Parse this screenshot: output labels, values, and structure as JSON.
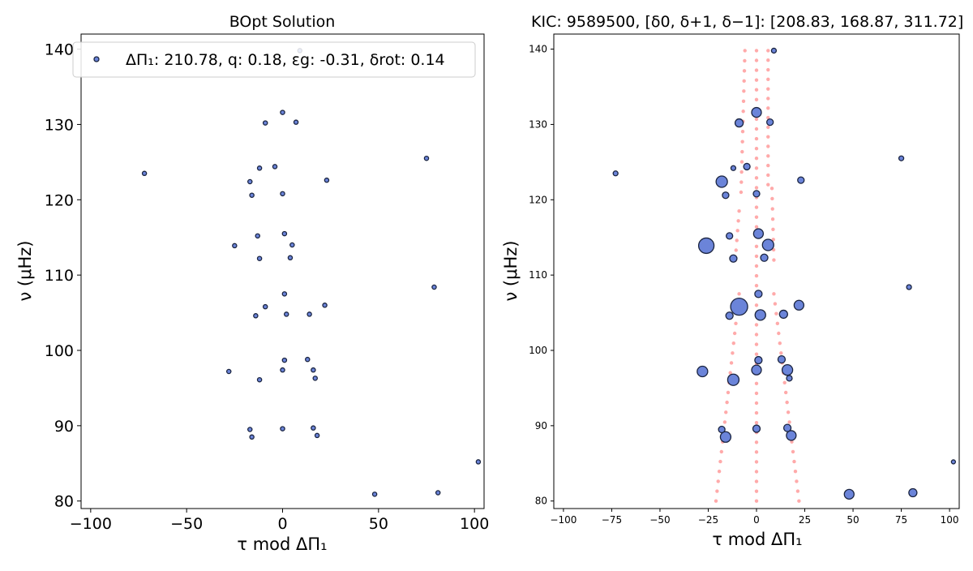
{
  "chart_data": [
    {
      "type": "scatter",
      "title": "BOpt Solution",
      "xlabel": "τ mod ΔΠ₁",
      "ylabel": "ν (μHz)",
      "xlim": [
        -105,
        105
      ],
      "ylim": [
        79,
        142
      ],
      "xticks": [
        "−100",
        "−50",
        "0",
        "50",
        "100"
      ],
      "yticks": [
        "80",
        "90",
        "100",
        "110",
        "120",
        "130",
        "140"
      ],
      "grid": false,
      "legend": {
        "position": "top",
        "label": "ΔΠ₁: 210.78, q: 0.18, εg: -0.31, δrot: 0.14"
      },
      "marker_color": "#6b84d9",
      "series": [
        {
          "points": [
            {
              "x": -72,
              "y": 123.5
            },
            {
              "x": -17,
              "y": 122.4
            },
            {
              "x": -16,
              "y": 120.6
            },
            {
              "x": -12,
              "y": 124.2
            },
            {
              "x": -4,
              "y": 124.4
            },
            {
              "x": 0,
              "y": 120.8
            },
            {
              "x": 23,
              "y": 122.6
            },
            {
              "x": 75,
              "y": 125.5
            },
            {
              "x": -9,
              "y": 130.2
            },
            {
              "x": 0,
              "y": 131.6
            },
            {
              "x": 7,
              "y": 130.3
            },
            {
              "x": 9,
              "y": 139.8
            },
            {
              "x": -25,
              "y": 113.9
            },
            {
              "x": -13,
              "y": 115.2
            },
            {
              "x": -12,
              "y": 112.2
            },
            {
              "x": 1,
              "y": 115.5
            },
            {
              "x": 5,
              "y": 114.0
            },
            {
              "x": 4,
              "y": 112.3
            },
            {
              "x": 79,
              "y": 108.4
            },
            {
              "x": -9,
              "y": 105.8
            },
            {
              "x": 1,
              "y": 107.5
            },
            {
              "x": -14,
              "y": 104.6
            },
            {
              "x": 2,
              "y": 104.8
            },
            {
              "x": 14,
              "y": 104.8
            },
            {
              "x": 22,
              "y": 106.0
            },
            {
              "x": -28,
              "y": 97.2
            },
            {
              "x": -12,
              "y": 96.1
            },
            {
              "x": 0,
              "y": 97.4
            },
            {
              "x": 1,
              "y": 98.7
            },
            {
              "x": 13,
              "y": 98.8
            },
            {
              "x": 16,
              "y": 97.4
            },
            {
              "x": 17,
              "y": 96.3
            },
            {
              "x": -17,
              "y": 89.5
            },
            {
              "x": -16,
              "y": 88.5
            },
            {
              "x": 0,
              "y": 89.6
            },
            {
              "x": 16,
              "y": 89.7
            },
            {
              "x": 18,
              "y": 88.7
            },
            {
              "x": 102,
              "y": 85.2
            },
            {
              "x": 48,
              "y": 80.9
            },
            {
              "x": 81,
              "y": 81.1
            }
          ]
        }
      ]
    },
    {
      "type": "scatter",
      "title": "KIC: 9589500, [δ0, δ+1, δ−1]: [208.83, 168.87, 311.72]",
      "xlabel": "τ mod ΔΠ₁",
      "ylabel": "ν (μHz)",
      "xlim": [
        -105,
        105
      ],
      "ylim": [
        79,
        142
      ],
      "xticks": [
        "−100",
        "−75",
        "−50",
        "−25",
        "0",
        "25",
        "50",
        "75",
        "100"
      ],
      "yticks": [
        "80",
        "90",
        "100",
        "110",
        "120",
        "130",
        "140"
      ],
      "grid": false,
      "observed_color": "#6b84d9",
      "model_color": "#ffaaaa",
      "series": [
        {
          "kind": "observed",
          "points": [
            {
              "x": -73,
              "y": 123.5,
              "s": 3
            },
            {
              "x": -18,
              "y": 122.4,
              "s": 7
            },
            {
              "x": -16,
              "y": 120.6,
              "s": 4
            },
            {
              "x": -12,
              "y": 124.2,
              "s": 3
            },
            {
              "x": -5,
              "y": 124.4,
              "s": 4
            },
            {
              "x": 0,
              "y": 120.8,
              "s": 4
            },
            {
              "x": 23,
              "y": 122.6,
              "s": 4
            },
            {
              "x": 75,
              "y": 125.5,
              "s": 3
            },
            {
              "x": -9,
              "y": 130.2,
              "s": 5
            },
            {
              "x": 0,
              "y": 131.6,
              "s": 6
            },
            {
              "x": 7,
              "y": 130.3,
              "s": 4
            },
            {
              "x": 9,
              "y": 139.8,
              "s": 3
            },
            {
              "x": -26,
              "y": 113.9,
              "s": 9.5
            },
            {
              "x": -14,
              "y": 115.2,
              "s": 4
            },
            {
              "x": -12,
              "y": 112.2,
              "s": 4.5
            },
            {
              "x": 1,
              "y": 115.5,
              "s": 6
            },
            {
              "x": 6,
              "y": 114.0,
              "s": 7
            },
            {
              "x": 4,
              "y": 112.3,
              "s": 4.5
            },
            {
              "x": 79,
              "y": 108.4,
              "s": 3
            },
            {
              "x": -9,
              "y": 105.8,
              "s": 10.5
            },
            {
              "x": 1,
              "y": 107.5,
              "s": 4.5
            },
            {
              "x": -14,
              "y": 104.6,
              "s": 4.5
            },
            {
              "x": 2,
              "y": 104.7,
              "s": 6.5
            },
            {
              "x": 14,
              "y": 104.8,
              "s": 5
            },
            {
              "x": 22,
              "y": 106.0,
              "s": 6
            },
            {
              "x": -28,
              "y": 97.2,
              "s": 6.5
            },
            {
              "x": -12,
              "y": 96.1,
              "s": 7
            },
            {
              "x": 0,
              "y": 97.4,
              "s": 6
            },
            {
              "x": 1,
              "y": 98.7,
              "s": 4.5
            },
            {
              "x": 13,
              "y": 98.8,
              "s": 4.5
            },
            {
              "x": 16,
              "y": 97.4,
              "s": 6.5
            },
            {
              "x": 17,
              "y": 96.3,
              "s": 3.5
            },
            {
              "x": -18,
              "y": 89.5,
              "s": 4
            },
            {
              "x": -16,
              "y": 88.5,
              "s": 6.5
            },
            {
              "x": 0,
              "y": 89.6,
              "s": 4.5
            },
            {
              "x": 16,
              "y": 89.7,
              "s": 4.5
            },
            {
              "x": 18,
              "y": 88.7,
              "s": 6
            },
            {
              "x": 102,
              "y": 85.2,
              "s": 2.5
            },
            {
              "x": 48,
              "y": 80.9,
              "s": 6
            },
            {
              "x": 81,
              "y": 81.1,
              "s": 5
            }
          ]
        },
        {
          "kind": "model",
          "lines": [
            {
              "x_start": 6,
              "x_end": 6,
              "y_start": 139.8,
              "y_end": 122.0
            },
            {
              "x_start": 0,
              "x_end": 0,
              "y_start": 139.8,
              "y_end": 80.0
            },
            {
              "x_start": -6,
              "x_end": -8,
              "y_start": 139.8,
              "y_end": 121.0
            },
            {
              "x_start": 8,
              "x_end": 9,
              "y_start": 121.5,
              "y_end": 112.0
            },
            {
              "x_start": -9,
              "x_end": -11,
              "y_start": 118.5,
              "y_end": 112.0
            },
            {
              "x_start": 9,
              "x_end": 22,
              "y_start": 107.5,
              "y_end": 80.0
            },
            {
              "x_start": -9,
              "x_end": -21,
              "y_start": 107.5,
              "y_end": 80.0
            }
          ]
        }
      ]
    }
  ]
}
